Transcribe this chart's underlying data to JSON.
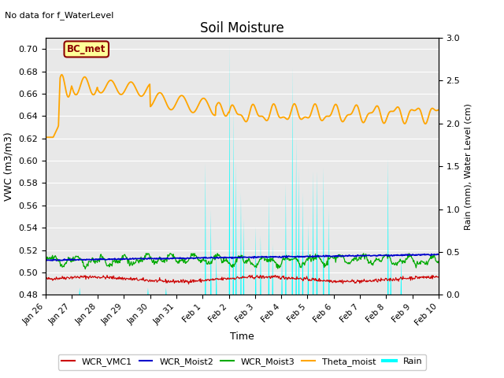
{
  "title": "Soil Moisture",
  "ylabel_left": "VWC (m3/m3)",
  "ylabel_right": "Rain (mm), Water Level (cm)",
  "xlabel": "Time",
  "annotation_top_left": "No data for f_WaterLevel",
  "box_label": "BC_met",
  "ylim_left": [
    0.48,
    0.71
  ],
  "ylim_right": [
    0.0,
    3.0
  ],
  "plot_bg_color": "#e8e8e8",
  "fig_bg_color": "#ffffff",
  "grid_color": "#ffffff",
  "tick_labels_x": [
    "Jan 26",
    "Jan 27",
    "Jan 28",
    "Jan 29",
    "Jan 30",
    "Jan 31",
    "Feb 1",
    "Feb 2",
    "Feb 3",
    "Feb 4",
    "Feb 5",
    "Feb 6",
    "Feb 7",
    "Feb 8",
    "Feb 9",
    "Feb 10"
  ],
  "yticks_left": [
    0.48,
    0.5,
    0.52,
    0.54,
    0.56,
    0.58,
    0.6,
    0.62,
    0.64,
    0.66,
    0.68,
    0.7
  ],
  "yticks_right": [
    0.0,
    0.5,
    1.0,
    1.5,
    2.0,
    2.5,
    3.0
  ],
  "legend_entries": [
    "WCR_VMC1",
    "WCR_Moist2",
    "WCR_Moist3",
    "Theta_moist",
    "Rain"
  ],
  "legend_colors": [
    "#cc0000",
    "#0000cc",
    "#00aa00",
    "#ffa500",
    "#00cccc"
  ]
}
